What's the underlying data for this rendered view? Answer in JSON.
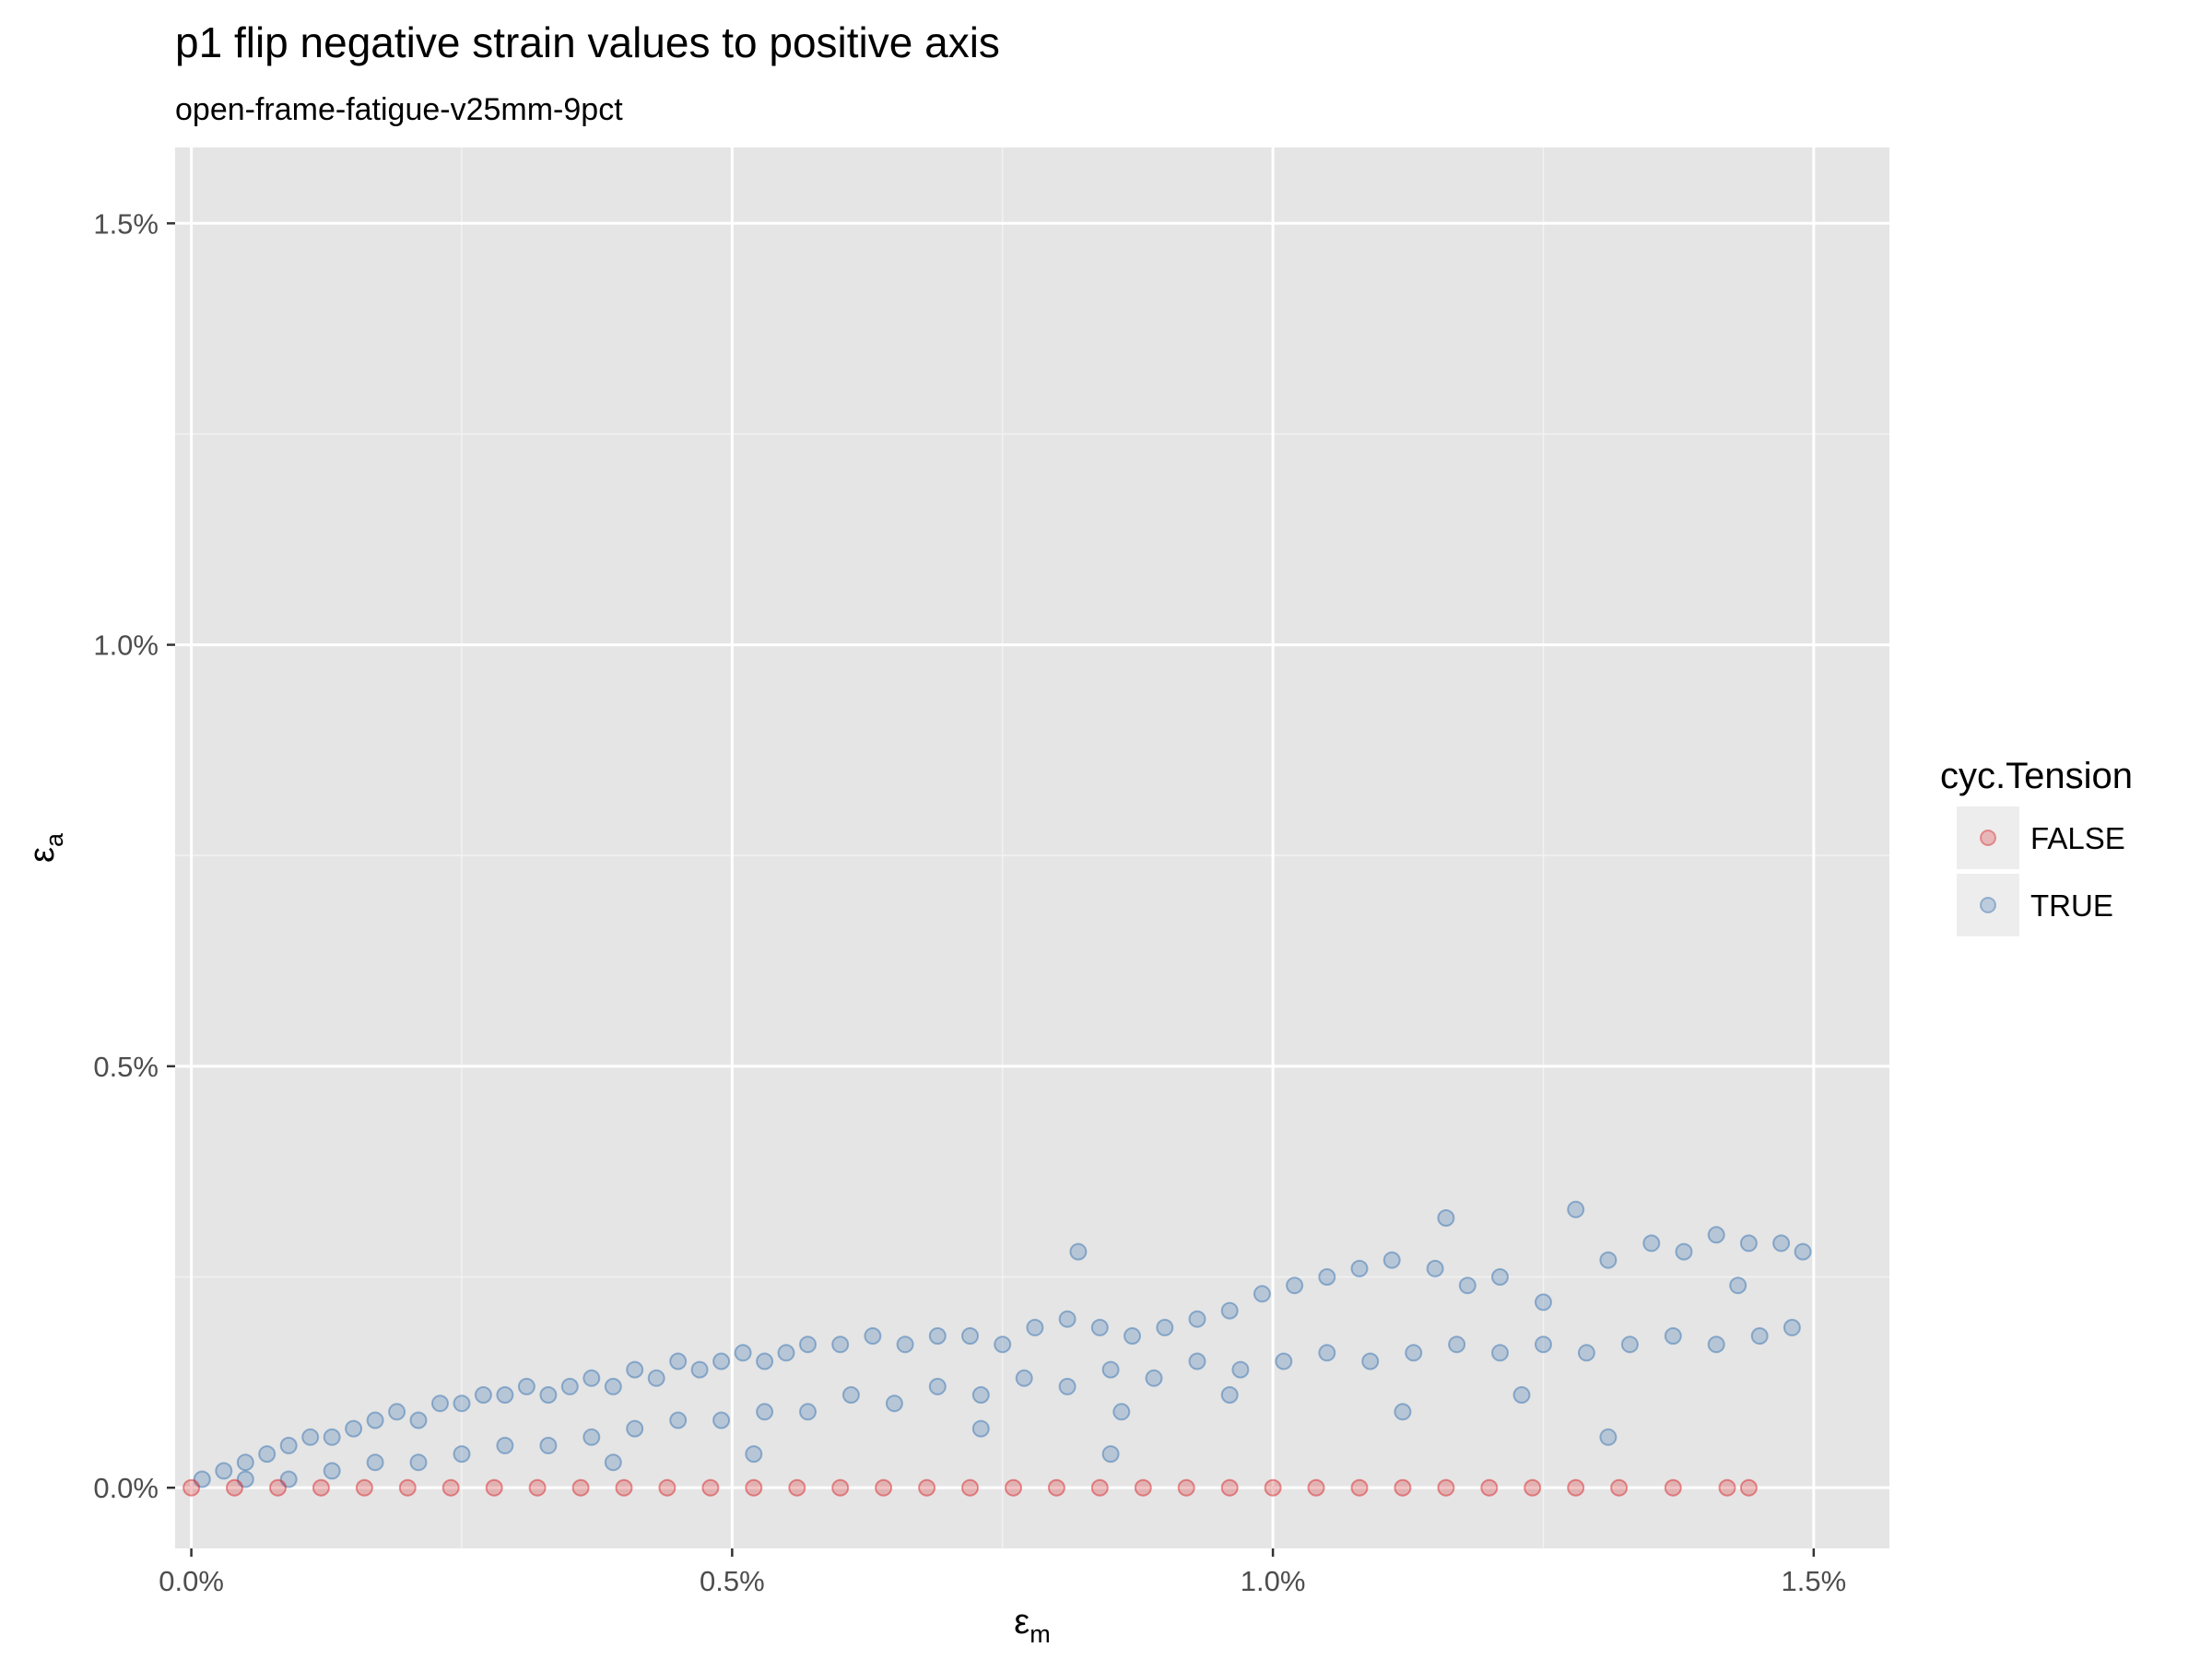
{
  "chart_data": {
    "type": "scatter",
    "title": "p1 flip negative strain values to positive axis",
    "subtitle": "open-frame-fatigue-v25mm-9pct",
    "xlabel": {
      "symbol": "ε",
      "subscript": "m"
    },
    "ylabel": {
      "symbol": "ε",
      "subscript": "a"
    },
    "xlim": [
      -0.00015,
      0.0157
    ],
    "ylim": [
      -0.00072,
      0.0159
    ],
    "x_ticks": [
      {
        "value": 0.0,
        "label": "0.0%"
      },
      {
        "value": 0.005,
        "label": "0.5%"
      },
      {
        "value": 0.01,
        "label": "1.0%"
      },
      {
        "value": 0.015,
        "label": "1.5%"
      }
    ],
    "y_ticks": [
      {
        "value": 0.0,
        "label": "0.0%"
      },
      {
        "value": 0.005,
        "label": "0.5%"
      },
      {
        "value": 0.01,
        "label": "1.0%"
      },
      {
        "value": 0.015,
        "label": "1.5%"
      }
    ],
    "grid": true,
    "panel_background": "#e5e5e5",
    "point_alpha": 0.25,
    "legend": {
      "title": "cyc.Tension",
      "position": "right"
    },
    "series": [
      {
        "name": "FALSE",
        "color": "#d7191c",
        "points": [
          [
            0.0,
            0.0
          ],
          [
            0.0004,
            0.0
          ],
          [
            0.0008,
            0.0
          ],
          [
            0.0012,
            0.0
          ],
          [
            0.0016,
            0.0
          ],
          [
            0.002,
            0.0
          ],
          [
            0.0024,
            0.0
          ],
          [
            0.0028,
            0.0
          ],
          [
            0.0032,
            0.0
          ],
          [
            0.0036,
            0.0
          ],
          [
            0.004,
            0.0
          ],
          [
            0.0044,
            0.0
          ],
          [
            0.0048,
            0.0
          ],
          [
            0.0052,
            0.0
          ],
          [
            0.0056,
            0.0
          ],
          [
            0.006,
            0.0
          ],
          [
            0.0064,
            0.0
          ],
          [
            0.0068,
            0.0
          ],
          [
            0.0072,
            0.0
          ],
          [
            0.0076,
            0.0
          ],
          [
            0.008,
            0.0
          ],
          [
            0.0084,
            0.0
          ],
          [
            0.0088,
            0.0
          ],
          [
            0.0092,
            0.0
          ],
          [
            0.0096,
            0.0
          ],
          [
            0.01,
            0.0
          ],
          [
            0.0104,
            0.0
          ],
          [
            0.0108,
            0.0
          ],
          [
            0.0112,
            0.0
          ],
          [
            0.0116,
            0.0
          ],
          [
            0.012,
            0.0
          ],
          [
            0.0124,
            0.0
          ],
          [
            0.0128,
            0.0
          ],
          [
            0.0132,
            0.0
          ],
          [
            0.0137,
            0.0
          ],
          [
            0.0142,
            0.0
          ],
          [
            0.0144,
            0.0
          ]
        ]
      },
      {
        "name": "TRUE",
        "color": "#2c6aad",
        "points": [
          [
            0.0001,
            0.0001
          ],
          [
            0.0003,
            0.0002
          ],
          [
            0.0005,
            0.0003
          ],
          [
            0.0007,
            0.0004
          ],
          [
            0.0009,
            0.0005
          ],
          [
            0.0011,
            0.0006
          ],
          [
            0.0013,
            0.0006
          ],
          [
            0.0015,
            0.0007
          ],
          [
            0.0017,
            0.0008
          ],
          [
            0.0019,
            0.0009
          ],
          [
            0.0021,
            0.0008
          ],
          [
            0.0023,
            0.001
          ],
          [
            0.0025,
            0.001
          ],
          [
            0.0027,
            0.0011
          ],
          [
            0.0029,
            0.0011
          ],
          [
            0.0031,
            0.0012
          ],
          [
            0.0033,
            0.0011
          ],
          [
            0.0035,
            0.0012
          ],
          [
            0.0037,
            0.0013
          ],
          [
            0.0039,
            0.0012
          ],
          [
            0.0041,
            0.0014
          ],
          [
            0.0043,
            0.0013
          ],
          [
            0.0045,
            0.0015
          ],
          [
            0.0047,
            0.0014
          ],
          [
            0.0049,
            0.0015
          ],
          [
            0.0051,
            0.0016
          ],
          [
            0.0053,
            0.0015
          ],
          [
            0.0055,
            0.0016
          ],
          [
            0.0057,
            0.0017
          ],
          [
            0.006,
            0.0017
          ],
          [
            0.0063,
            0.0018
          ],
          [
            0.0066,
            0.0017
          ],
          [
            0.0069,
            0.0018
          ],
          [
            0.0072,
            0.0018
          ],
          [
            0.0075,
            0.0017
          ],
          [
            0.0078,
            0.0019
          ],
          [
            0.0081,
            0.002
          ],
          [
            0.0084,
            0.0019
          ],
          [
            0.0087,
            0.0018
          ],
          [
            0.009,
            0.0019
          ],
          [
            0.0093,
            0.002
          ],
          [
            0.0096,
            0.0021
          ],
          [
            0.0099,
            0.0023
          ],
          [
            0.0102,
            0.0024
          ],
          [
            0.0105,
            0.0025
          ],
          [
            0.0108,
            0.0026
          ],
          [
            0.0111,
            0.0027
          ],
          [
            0.0115,
            0.0026
          ],
          [
            0.0118,
            0.0024
          ],
          [
            0.0121,
            0.0025
          ],
          [
            0.0125,
            0.0022
          ],
          [
            0.0128,
            0.0033
          ],
          [
            0.0131,
            0.0027
          ],
          [
            0.0135,
            0.0029
          ],
          [
            0.0138,
            0.0028
          ],
          [
            0.0141,
            0.003
          ],
          [
            0.0144,
            0.0029
          ],
          [
            0.0147,
            0.0029
          ],
          [
            0.0149,
            0.0028
          ],
          [
            0.0148,
            0.0019
          ],
          [
            0.0145,
            0.0018
          ],
          [
            0.0141,
            0.0017
          ],
          [
            0.0137,
            0.0018
          ],
          [
            0.0133,
            0.0017
          ],
          [
            0.0129,
            0.0016
          ],
          [
            0.0125,
            0.0017
          ],
          [
            0.0121,
            0.0016
          ],
          [
            0.0117,
            0.0017
          ],
          [
            0.0113,
            0.0016
          ],
          [
            0.0109,
            0.0015
          ],
          [
            0.0105,
            0.0016
          ],
          [
            0.0101,
            0.0015
          ],
          [
            0.0097,
            0.0014
          ],
          [
            0.0093,
            0.0015
          ],
          [
            0.0089,
            0.0013
          ],
          [
            0.0085,
            0.0014
          ],
          [
            0.0081,
            0.0012
          ],
          [
            0.0077,
            0.0013
          ],
          [
            0.0073,
            0.0011
          ],
          [
            0.0069,
            0.0012
          ],
          [
            0.0065,
            0.001
          ],
          [
            0.0061,
            0.0011
          ],
          [
            0.0057,
            0.0009
          ],
          [
            0.0053,
            0.0009
          ],
          [
            0.0049,
            0.0008
          ],
          [
            0.0045,
            0.0008
          ],
          [
            0.0041,
            0.0007
          ],
          [
            0.0037,
            0.0006
          ],
          [
            0.0033,
            0.0005
          ],
          [
            0.0029,
            0.0005
          ],
          [
            0.0025,
            0.0004
          ],
          [
            0.0021,
            0.0003
          ],
          [
            0.0017,
            0.0003
          ],
          [
            0.0013,
            0.0002
          ],
          [
            0.0009,
            0.0001
          ],
          [
            0.0005,
            0.0001
          ],
          [
            0.0082,
            0.0028
          ],
          [
            0.0116,
            0.0032
          ],
          [
            0.0131,
            0.0006
          ],
          [
            0.0085,
            0.0004
          ],
          [
            0.0052,
            0.0004
          ],
          [
            0.0039,
            0.0003
          ],
          [
            0.0096,
            0.0011
          ],
          [
            0.0112,
            0.0009
          ],
          [
            0.0123,
            0.0011
          ],
          [
            0.0143,
            0.0024
          ],
          [
            0.0086,
            0.0009
          ],
          [
            0.0073,
            0.0007
          ]
        ]
      }
    ]
  }
}
